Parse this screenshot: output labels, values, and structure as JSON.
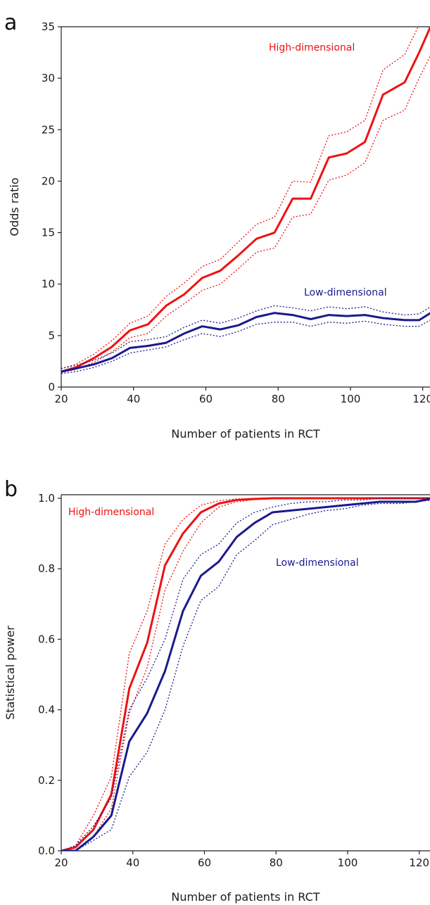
{
  "chart_data": [
    {
      "panel": "a",
      "type": "line",
      "xlabel": "Number of patients in RCT",
      "ylabel": "Odds ratio",
      "xlim": [
        20,
        122
      ],
      "ylim": [
        0,
        35
      ],
      "xticks": [
        20,
        40,
        60,
        80,
        100,
        120
      ],
      "yticks": [
        0,
        5,
        10,
        15,
        20,
        25,
        30,
        35
      ],
      "grid": false,
      "x": [
        20,
        24,
        29,
        34,
        39,
        44,
        49,
        54,
        59,
        64,
        69,
        74,
        79,
        84,
        89,
        94,
        99,
        104,
        109,
        115,
        119,
        124
      ],
      "series": [
        {
          "name": "High-dimensional",
          "color": "#ee1111",
          "values": [
            1.5,
            1.9,
            2.8,
            3.9,
            5.5,
            6.1,
            7.9,
            9.0,
            10.6,
            11.3,
            12.8,
            14.4,
            15.0,
            18.3,
            18.3,
            22.3,
            22.7,
            23.8,
            28.4,
            29.6,
            32.5,
            36.5
          ],
          "lower": [
            1.4,
            1.7,
            2.4,
            3.4,
            4.8,
            5.2,
            6.9,
            8.1,
            9.4,
            10.0,
            11.5,
            13.1,
            13.5,
            16.5,
            16.8,
            20.1,
            20.6,
            21.8,
            25.9,
            26.9,
            30.0,
            33.5
          ],
          "upper": [
            1.8,
            2.2,
            3.2,
            4.5,
            6.2,
            6.9,
            8.8,
            10.1,
            11.7,
            12.4,
            14.1,
            15.8,
            16.5,
            20.0,
            19.9,
            24.4,
            24.8,
            25.9,
            30.8,
            32.3,
            35.2,
            39.0
          ]
        },
        {
          "name": "Low-dimensional",
          "color": "#1a1a8c",
          "values": [
            1.5,
            1.8,
            2.2,
            2.8,
            3.8,
            4.0,
            4.3,
            5.2,
            5.9,
            5.6,
            6.0,
            6.8,
            7.2,
            7.0,
            6.6,
            7.0,
            6.9,
            7.0,
            6.7,
            6.5,
            6.5,
            7.6
          ],
          "lower": [
            1.3,
            1.5,
            1.9,
            2.5,
            3.3,
            3.6,
            3.9,
            4.6,
            5.2,
            4.9,
            5.4,
            6.1,
            6.3,
            6.3,
            5.9,
            6.3,
            6.2,
            6.4,
            6.1,
            5.9,
            5.9,
            6.9
          ],
          "upper": [
            1.8,
            2.1,
            2.6,
            3.3,
            4.4,
            4.6,
            4.9,
            5.8,
            6.5,
            6.2,
            6.7,
            7.4,
            7.9,
            7.7,
            7.4,
            7.8,
            7.6,
            7.8,
            7.3,
            7.0,
            7.1,
            8.2
          ]
        }
      ]
    },
    {
      "panel": "b",
      "type": "line",
      "xlabel": "Number of patients in RCT",
      "ylabel": "Statistical power",
      "xlim": [
        20,
        123
      ],
      "ylim": [
        0,
        1.01
      ],
      "xticks": [
        20,
        40,
        60,
        80,
        100,
        120
      ],
      "yticks": [
        "0.0",
        "0.2",
        "0.4",
        "0.6",
        "0.8",
        "1.0"
      ],
      "grid": false,
      "x": [
        20,
        24,
        29,
        34,
        39,
        44,
        49,
        54,
        59,
        64,
        69,
        74,
        79,
        84,
        89,
        94,
        99,
        104,
        109,
        115,
        119,
        124
      ],
      "series": [
        {
          "name": "High-dimensional",
          "color": "#ee1111",
          "values": [
            0.0,
            0.01,
            0.06,
            0.16,
            0.46,
            0.59,
            0.81,
            0.9,
            0.96,
            0.985,
            0.995,
            0.998,
            1.0,
            1.0,
            1.0,
            1.0,
            1.0,
            1.0,
            1.0,
            1.0,
            1.0,
            1.0
          ],
          "lower": [
            0.0,
            0.0,
            0.04,
            0.12,
            0.39,
            0.52,
            0.74,
            0.85,
            0.93,
            0.975,
            0.99,
            0.996,
            0.999,
            1.0,
            1.0,
            1.0,
            1.0,
            1.0,
            1.0,
            1.0,
            1.0,
            1.0
          ],
          "upper": [
            0.0,
            0.015,
            0.1,
            0.21,
            0.56,
            0.68,
            0.87,
            0.94,
            0.98,
            0.993,
            0.998,
            1.0,
            1.0,
            1.0,
            1.0,
            1.0,
            1.0,
            1.0,
            1.0,
            1.0,
            1.0,
            1.0
          ]
        },
        {
          "name": "Low-dimensional",
          "color": "#1a1a8c",
          "values": [
            0.0,
            0.0,
            0.04,
            0.1,
            0.31,
            0.39,
            0.51,
            0.68,
            0.78,
            0.82,
            0.89,
            0.93,
            0.96,
            0.965,
            0.97,
            0.975,
            0.98,
            0.985,
            0.99,
            0.99,
            0.99,
            1.0
          ],
          "lower": [
            0.0,
            0.0,
            0.03,
            0.06,
            0.21,
            0.28,
            0.4,
            0.58,
            0.71,
            0.75,
            0.84,
            0.88,
            0.925,
            0.94,
            0.955,
            0.965,
            0.97,
            0.98,
            0.985,
            0.985,
            0.99,
            0.995
          ],
          "upper": [
            0.0,
            0.015,
            0.07,
            0.15,
            0.4,
            0.49,
            0.6,
            0.77,
            0.84,
            0.87,
            0.93,
            0.96,
            0.975,
            0.985,
            0.99,
            0.99,
            0.995,
            0.995,
            1.0,
            1.0,
            1.0,
            1.0
          ]
        }
      ]
    }
  ]
}
